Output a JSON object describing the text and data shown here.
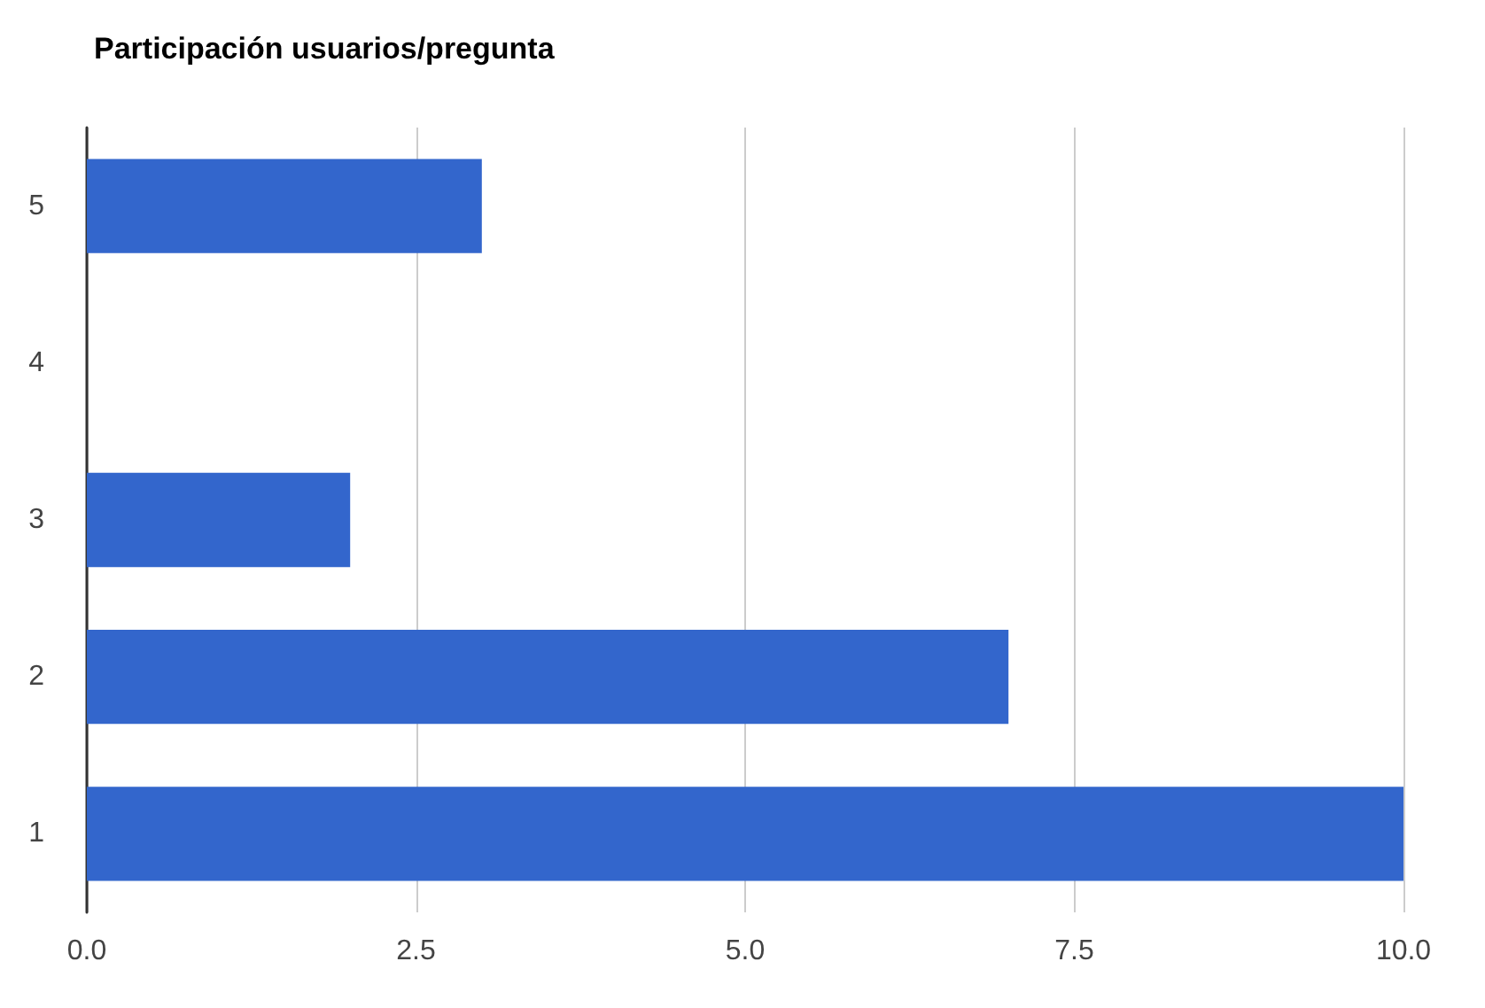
{
  "chart_data": {
    "type": "bar",
    "title": "Participación usuarios/pregunta",
    "orientation": "horizontal",
    "categories": [
      "5",
      "4",
      "3",
      "2",
      "1"
    ],
    "values": [
      3,
      0,
      2,
      7,
      10
    ],
    "color": "#3366cc",
    "xlim": [
      0,
      10
    ],
    "xticks": [
      {
        "value": 0,
        "label": "0.0"
      },
      {
        "value": 2.5,
        "label": "2.5"
      },
      {
        "value": 5,
        "label": "5.0"
      },
      {
        "value": 7.5,
        "label": "7.5"
      },
      {
        "value": 10,
        "label": "10.0"
      }
    ],
    "grid": "x"
  }
}
